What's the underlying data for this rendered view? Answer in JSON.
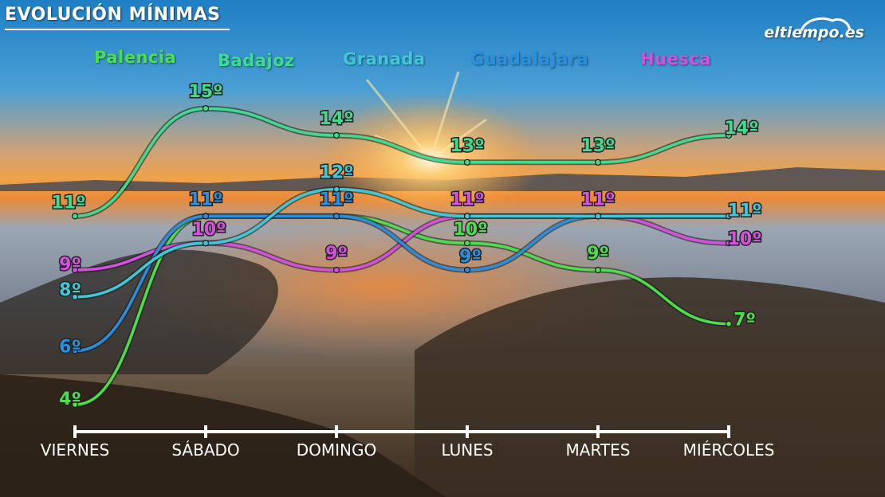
{
  "title": "EVOLUCIÓN MÍNIMAS",
  "logo": "eltiempo.es",
  "colors": {
    "Palencia": "#4be04b",
    "Badajoz": "#3edc8e",
    "Granada": "#3ec8d8",
    "Guadalajara": "#2a8fe0",
    "Huesca": "#d84ee0"
  },
  "chart_data": {
    "type": "line",
    "title": "EVOLUCIÓN MÍNIMAS",
    "categories": [
      "VIERNES",
      "SÁBADO",
      "DOMINGO",
      "LUNES",
      "MARTES",
      "MIÉRCOLES"
    ],
    "legend_position": "top",
    "grid": false,
    "series": [
      {
        "name": "Badajoz",
        "values": [
          11,
          15,
          14,
          13,
          13,
          14
        ],
        "labels": [
          "11º",
          "15º",
          "14º",
          "13º",
          "13º",
          "14º"
        ]
      },
      {
        "name": "Granada",
        "values": [
          8,
          10,
          12,
          11,
          11,
          11
        ],
        "labels": [
          "8º",
          "",
          "12º",
          "",
          "",
          "11º"
        ]
      },
      {
        "name": "Guadalajara",
        "values": [
          6,
          11,
          11,
          9,
          11,
          11
        ],
        "labels": [
          "6º",
          "11º",
          "11º",
          "9º",
          "",
          ""
        ]
      },
      {
        "name": "Huesca",
        "values": [
          9,
          10,
          9,
          11,
          11,
          10
        ],
        "labels": [
          "9º",
          "10º",
          "9º",
          "11º",
          "11º",
          "10º"
        ]
      },
      {
        "name": "Palencia",
        "values": [
          4,
          11,
          11,
          10,
          9,
          7
        ],
        "labels": [
          "4º",
          "",
          "",
          "10º",
          "9º",
          "7º"
        ]
      }
    ]
  }
}
